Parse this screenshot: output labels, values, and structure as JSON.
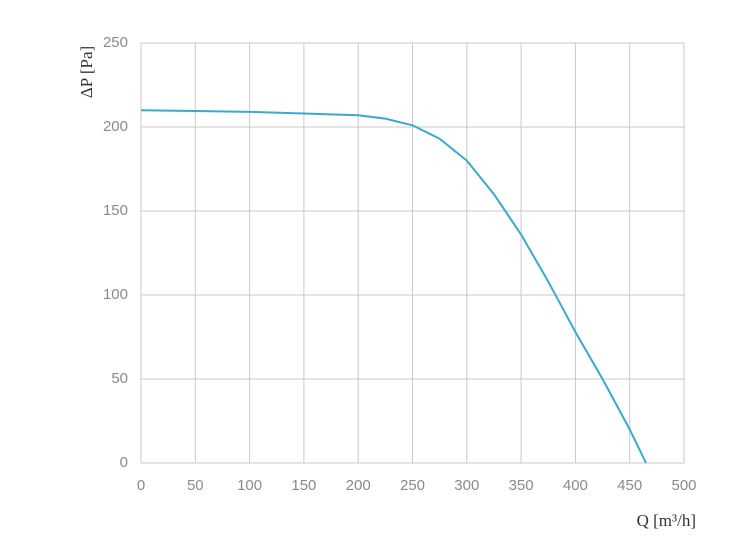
{
  "chart_data": {
    "type": "line",
    "x_label": "Q [m³/h]",
    "y_label": "ΔP [Pa]",
    "x": [
      0,
      50,
      100,
      150,
      200,
      225,
      250,
      275,
      300,
      325,
      350,
      375,
      400,
      425,
      450,
      465
    ],
    "series": [
      {
        "name": "ΔP",
        "color": "#3ba9cc",
        "values": [
          210,
          209.5,
          209,
          208,
          207,
          205,
          201,
          193,
          180,
          160,
          136,
          108,
          78,
          50,
          20,
          0
        ]
      }
    ],
    "xlim": [
      0,
      500
    ],
    "xticks": [
      0,
      50,
      100,
      150,
      200,
      250,
      300,
      350,
      400,
      450,
      500
    ],
    "ylim": [
      0,
      250
    ],
    "yticks": [
      0,
      50,
      100,
      150,
      200,
      250
    ],
    "grid": true
  }
}
